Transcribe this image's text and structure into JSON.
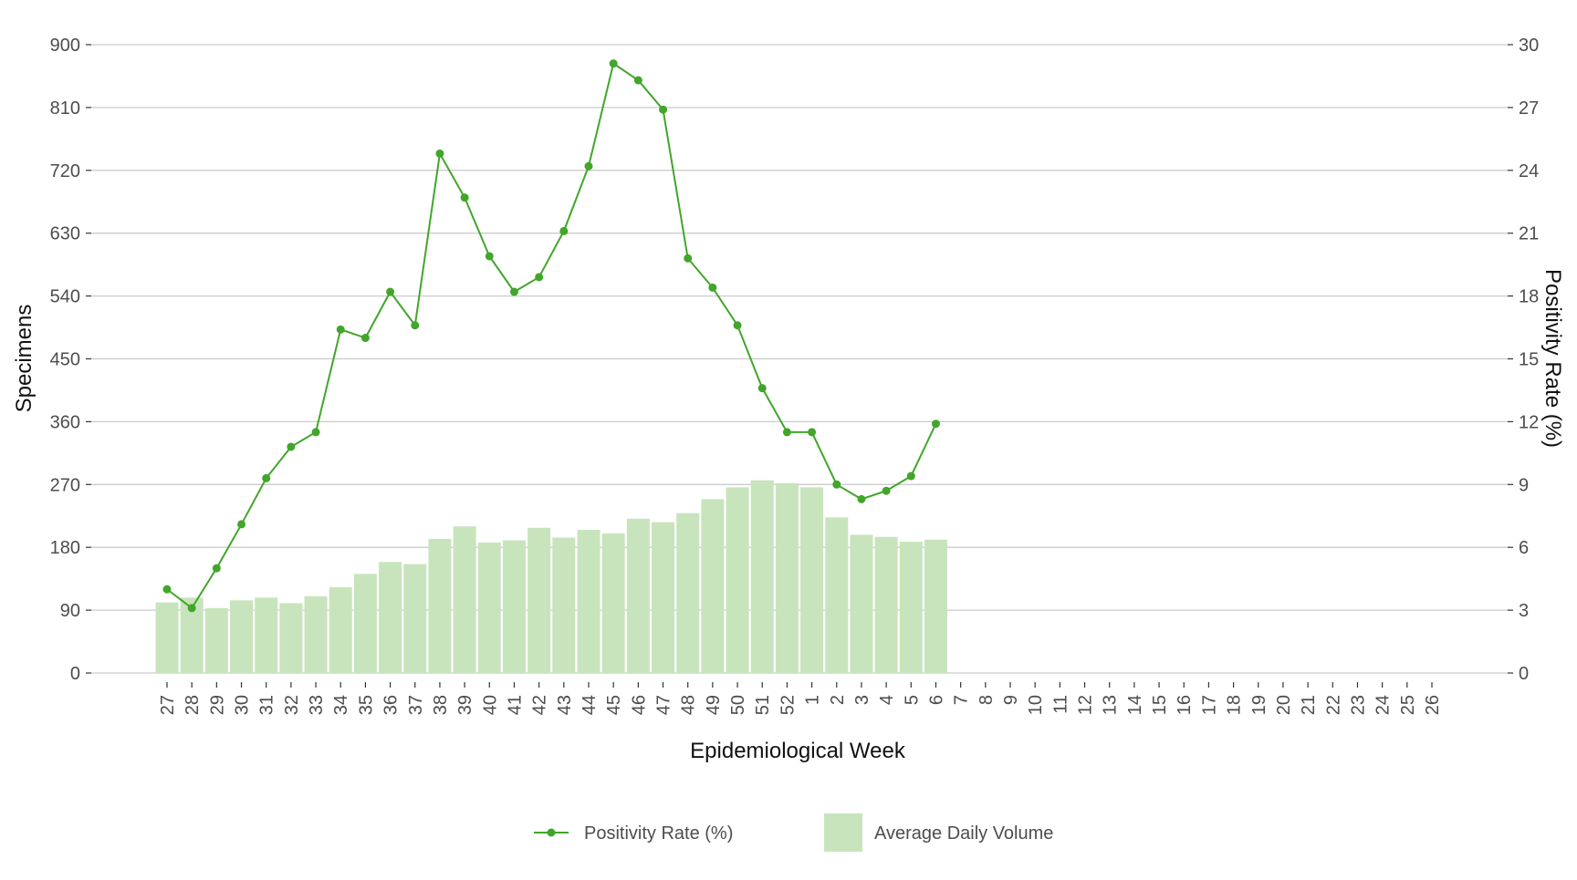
{
  "chart_data": {
    "type": "bar",
    "x_label": "Epidemiological Week",
    "y_label": "Specimens",
    "y2_label": "Positivity Rate (%)",
    "categories": [
      "27",
      "28",
      "29",
      "30",
      "31",
      "32",
      "33",
      "34",
      "35",
      "36",
      "37",
      "38",
      "39",
      "40",
      "41",
      "42",
      "43",
      "44",
      "45",
      "46",
      "47",
      "48",
      "49",
      "50",
      "51",
      "52",
      "1",
      "2",
      "3",
      "4",
      "5",
      "6",
      "7",
      "8",
      "9",
      "10",
      "11",
      "12",
      "13",
      "14",
      "15",
      "16",
      "17",
      "18",
      "19",
      "20",
      "21",
      "22",
      "23",
      "24",
      "25",
      "26"
    ],
    "series": [
      {
        "name": "Average Daily Volume",
        "type": "bar",
        "axis": "y",
        "color": "#c8e4bc",
        "values": [
          101,
          108,
          93,
          104,
          108,
          100,
          110,
          123,
          142,
          159,
          156,
          192,
          210,
          187,
          190,
          208,
          194,
          205,
          200,
          221,
          216,
          229,
          249,
          266,
          276,
          272,
          266,
          223,
          198,
          195,
          188,
          191,
          null,
          null,
          null,
          null,
          null,
          null,
          null,
          null,
          null,
          null,
          null,
          null,
          null,
          null,
          null,
          null,
          null,
          null,
          null,
          null
        ]
      },
      {
        "name": "Positivity Rate (%)",
        "type": "line",
        "axis": "y2",
        "color": "#41a62a",
        "values": [
          4.0,
          3.1,
          5.0,
          7.1,
          9.3,
          10.8,
          11.5,
          16.4,
          16.0,
          18.2,
          16.6,
          24.8,
          22.7,
          19.9,
          18.2,
          18.9,
          21.1,
          24.2,
          29.1,
          28.3,
          26.9,
          19.8,
          18.4,
          16.6,
          13.6,
          11.5,
          11.5,
          9.0,
          8.3,
          8.7,
          9.4,
          11.9,
          null,
          null,
          null,
          null,
          null,
          null,
          null,
          null,
          null,
          null,
          null,
          null,
          null,
          null,
          null,
          null,
          null,
          null,
          null,
          null
        ]
      }
    ],
    "ylim": [
      0,
      900
    ],
    "yticks": [
      0,
      90,
      180,
      270,
      360,
      450,
      540,
      630,
      720,
      810,
      900
    ],
    "y2lim": [
      0,
      30
    ],
    "y2ticks": [
      0,
      3,
      6,
      9,
      12,
      15,
      18,
      21,
      24,
      27,
      30
    ],
    "grid": true,
    "legend": "bottom"
  }
}
